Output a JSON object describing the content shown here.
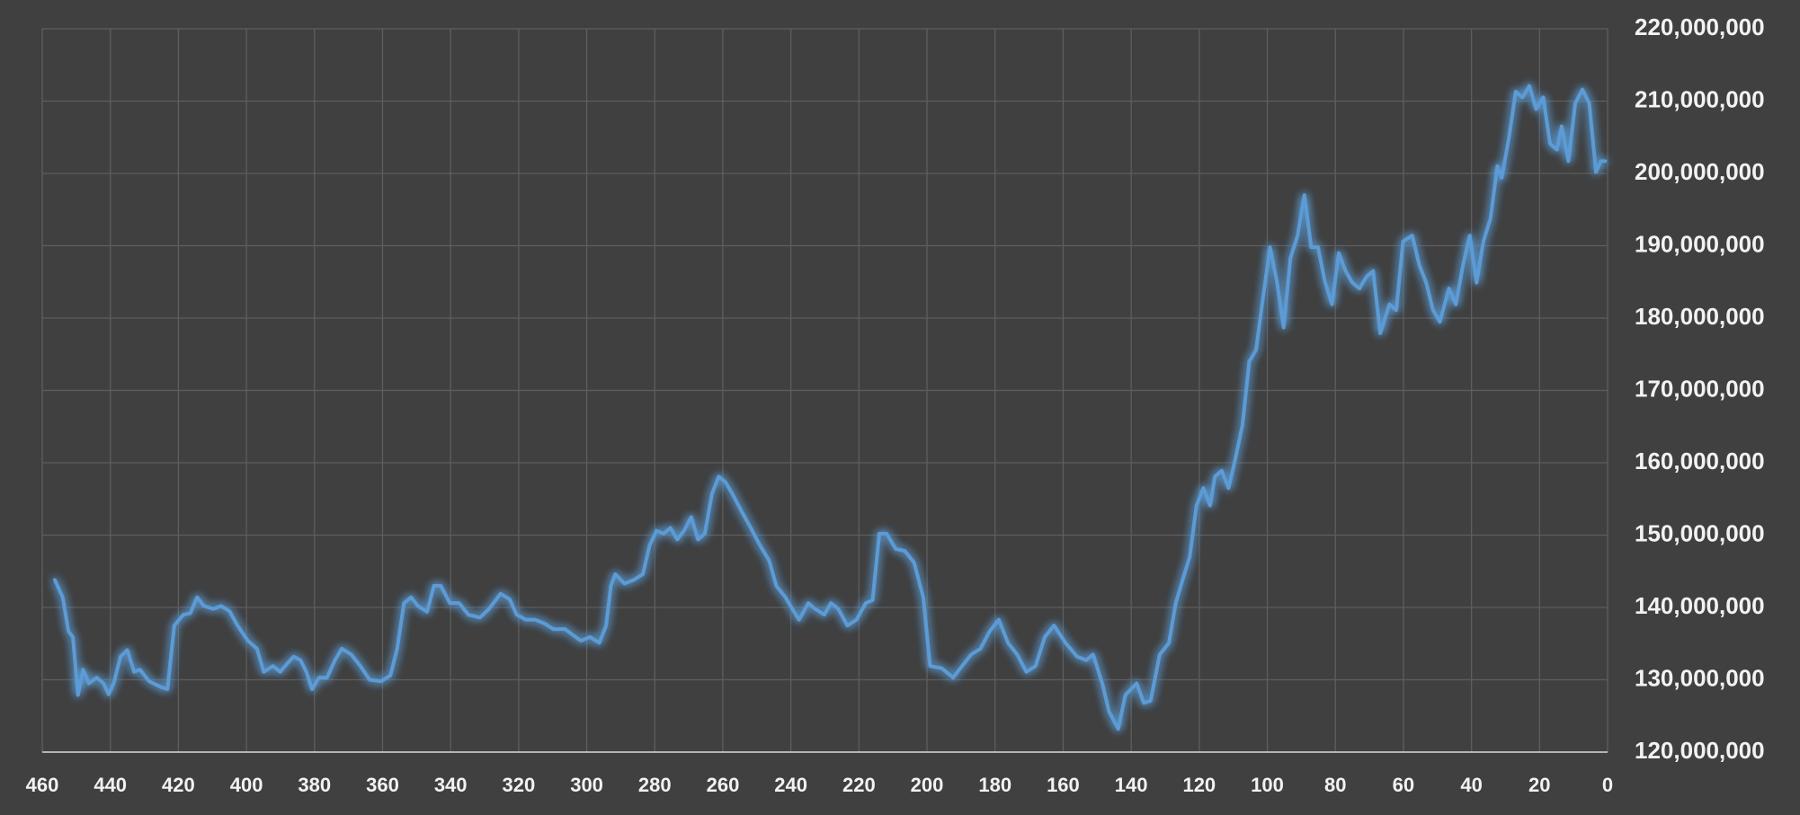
{
  "chart_data": {
    "type": "line",
    "xlim": [
      460,
      0
    ],
    "xticks": [
      460,
      440,
      420,
      400,
      380,
      360,
      340,
      320,
      300,
      280,
      260,
      240,
      220,
      200,
      180,
      160,
      140,
      120,
      100,
      80,
      60,
      40,
      20,
      0
    ],
    "ylim": [
      120000000,
      220000000
    ],
    "yticks": [
      {
        "value": 120000000,
        "label": "120,000,000"
      },
      {
        "value": 130000000,
        "label": "130,000,000"
      },
      {
        "value": 140000000,
        "label": "140,000,000"
      },
      {
        "value": 150000000,
        "label": "150,000,000"
      },
      {
        "value": 160000000,
        "label": "160,000,000"
      },
      {
        "value": 170000000,
        "label": "170,000,000"
      },
      {
        "value": 180000000,
        "label": "180,000,000"
      },
      {
        "value": 190000000,
        "label": "190,000,000"
      },
      {
        "value": 200000000,
        "label": "200,000,000"
      },
      {
        "value": 210000000,
        "label": "210,000,000"
      },
      {
        "value": 220000000,
        "label": "220,000,000"
      }
    ],
    "grid": true,
    "series": [
      {
        "color": "#5b9bd5",
        "x": [
          456.3,
          454,
          452.3,
          451,
          449.5,
          448,
          446.3,
          444,
          442,
          440.5,
          439,
          437,
          435,
          433,
          431.3,
          428.6,
          425.2,
          423.2,
          421.2,
          418.5,
          416.5,
          414.5,
          412.5,
          409.7,
          407.4,
          405,
          402.6,
          399.6,
          396.9,
          394.9,
          392.2,
          390.1,
          388.1,
          386.1,
          384.1,
          382.4,
          380.7,
          378.7,
          376.3,
          374,
          372,
          369.2,
          366.5,
          363.8,
          360.4,
          357.7,
          355.7,
          353.7,
          351.6,
          349.6,
          346.9,
          344.9,
          342.9,
          340.2,
          337.5,
          334.8,
          331.4,
          328.7,
          325.3,
          322.6,
          320.6,
          317.9,
          315.2,
          312.5,
          309.8,
          306.4,
          304.4,
          301.7,
          299,
          296.3,
          294.3,
          292.9,
          291.6,
          288.9,
          286.2,
          283.5,
          281.5,
          279.5,
          277.4,
          275.4,
          273.4,
          271.4,
          269.3,
          267.3,
          265.3,
          263.2,
          261.2,
          259.2,
          257.2,
          254.5,
          251.8,
          249.1,
          246.4,
          244.3,
          241.6,
          239.6,
          237.6,
          234.9,
          232.9,
          230.2,
          228.2,
          226.1,
          223.4,
          220.7,
          218,
          216,
          214,
          211.9,
          209.2,
          206.5,
          203.8,
          201.1,
          199.1,
          195.7,
          192.3,
          189.7,
          187,
          184.3,
          181.6,
          178.9,
          176.2,
          173.5,
          170.8,
          168.1,
          165.4,
          162.7,
          159.3,
          155.9,
          153.2,
          151.2,
          148.5,
          146.5,
          143.8,
          141.7,
          138.4,
          136.3,
          134.3,
          131.6,
          128.9,
          126.9,
          124.9,
          122.8,
          120.8,
          118.8,
          116.8,
          115.4,
          113.4,
          111.4,
          109.4,
          107.3,
          105.3,
          103.3,
          101.3,
          99.2,
          97.2,
          95.2,
          93.2,
          91.1,
          89.1,
          87.1,
          85.1,
          83.1,
          81,
          79,
          77,
          75,
          72.9,
          70.9,
          68.9,
          66.8,
          64.1,
          62.1,
          60.1,
          57.4,
          55.3,
          53.3,
          51.3,
          49.3,
          46.6,
          44.6,
          42.5,
          40.5,
          38.5,
          36.5,
          34.4,
          32.4,
          31.1,
          29,
          27,
          25,
          23,
          21,
          18.9,
          16.9,
          14.9,
          13.5,
          11.5,
          9.5,
          7.4,
          5.4,
          3.4,
          2,
          0.7
        ],
        "values": [
          143800000,
          141400000,
          136700000,
          135900000,
          127900000,
          131400000,
          129500000,
          130300000,
          129500000,
          128000000,
          129500000,
          133200000,
          134100000,
          131100000,
          131400000,
          129800000,
          129000000,
          128700000,
          137500000,
          139000000,
          139200000,
          141400000,
          140200000,
          139800000,
          140200000,
          139500000,
          137500000,
          135400000,
          134300000,
          131100000,
          131900000,
          131100000,
          132200000,
          133200000,
          132700000,
          131100000,
          128700000,
          130300000,
          130300000,
          132700000,
          134300000,
          133500000,
          131900000,
          130000000,
          129800000,
          130600000,
          134300000,
          140600000,
          141400000,
          140200000,
          139400000,
          143000000,
          143000000,
          140600000,
          140600000,
          139000000,
          138600000,
          139800000,
          141900000,
          141100000,
          139000000,
          138300000,
          138300000,
          137800000,
          137000000,
          137000000,
          136300000,
          135400000,
          135900000,
          135100000,
          137500000,
          143000000,
          144600000,
          143300000,
          143800000,
          144600000,
          148600000,
          150600000,
          150200000,
          151000000,
          149400000,
          150600000,
          152500000,
          149400000,
          150200000,
          155700000,
          158100000,
          157300000,
          155700000,
          153300000,
          151000000,
          148600000,
          146500000,
          143000000,
          141400000,
          139800000,
          138300000,
          140600000,
          139800000,
          139000000,
          140600000,
          139800000,
          137500000,
          138300000,
          140600000,
          141000000,
          150200000,
          150200000,
          148100000,
          147800000,
          146200000,
          141400000,
          131900000,
          131600000,
          130300000,
          131900000,
          133500000,
          134300000,
          136700000,
          138300000,
          135100000,
          133500000,
          131100000,
          131900000,
          135900000,
          137500000,
          135100000,
          133200000,
          132700000,
          133500000,
          129500000,
          125600000,
          123200000,
          127900000,
          129500000,
          126800000,
          127100000,
          133500000,
          135100000,
          140600000,
          143800000,
          147000000,
          154100000,
          156500000,
          154100000,
          158100000,
          158900000,
          156500000,
          160500000,
          165200000,
          174000000,
          175600000,
          182700000,
          189800000,
          185100000,
          178700000,
          188300000,
          191400000,
          197000000,
          189800000,
          189800000,
          185100000,
          181900000,
          189000000,
          186500000,
          184900000,
          184100000,
          185700000,
          186500000,
          177900000,
          181900000,
          181100000,
          190600000,
          191400000,
          187300000,
          184900000,
          181100000,
          179500000,
          184100000,
          181900000,
          187300000,
          191400000,
          184900000,
          190600000,
          193800000,
          201000000,
          199400000,
          204900000,
          211300000,
          210500000,
          212100000,
          208900000,
          210500000,
          204100000,
          203300000,
          206500000,
          201700000,
          209700000,
          211600000,
          209700000,
          200200000,
          201700000,
          201700000
        ]
      }
    ]
  }
}
